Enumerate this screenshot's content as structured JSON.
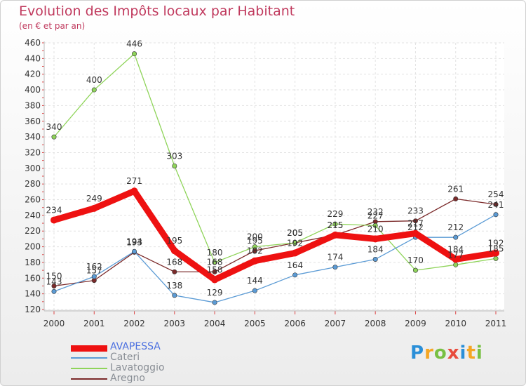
{
  "chart_data": {
    "type": "line",
    "title": "Evolution des Impôts locaux par Habitant",
    "subtitle": "(en € et par an)",
    "xlabel": "",
    "ylabel": "",
    "categories": [
      "2000",
      "2001",
      "2002",
      "2003",
      "2004",
      "2005",
      "2006",
      "2007",
      "2008",
      "2009",
      "2010",
      "2011"
    ],
    "ylim": [
      120,
      460
    ],
    "yticks": [
      120,
      140,
      160,
      180,
      200,
      220,
      240,
      260,
      280,
      300,
      320,
      340,
      360,
      380,
      400,
      420,
      440,
      460
    ],
    "grid": true,
    "legend_position": "bottom-left",
    "series": [
      {
        "name": "AVAPESSA",
        "color": "#ee1111",
        "values": [
          234,
          249,
          271,
          195,
          158,
          182,
          192,
          215,
          210,
          217,
          184,
          192
        ]
      },
      {
        "name": "Cateri",
        "color": "#5b9bd5",
        "values": [
          143,
          162,
          194,
          138,
          129,
          144,
          164,
          174,
          184,
          212,
          212,
          241
        ]
      },
      {
        "name": "Lavatoggio",
        "color": "#8fd45a",
        "values": [
          340,
          400,
          446,
          303,
          180,
          200,
          205,
          229,
          227,
          170,
          177,
          185
        ]
      },
      {
        "name": "Aregno",
        "color": "#7b2a2a",
        "values": [
          150,
          157,
          193,
          168,
          168,
          195,
          205,
          215,
          232,
          233,
          261,
          254
        ]
      }
    ]
  },
  "legend": {
    "items": [
      {
        "label": "AVAPESSA",
        "color": "#ee1111",
        "text_color": "#4a6fe0"
      },
      {
        "label": "Cateri",
        "color": "#5b9bd5",
        "text_color": "#8a8f96"
      },
      {
        "label": "Lavatoggio",
        "color": "#8fd45a",
        "text_color": "#8a8f96"
      },
      {
        "label": "Aregno",
        "color": "#7b2a2a",
        "text_color": "#8a8f96"
      }
    ]
  },
  "logo": {
    "letters": [
      "P",
      "r",
      "o",
      "x",
      "i",
      "t",
      "i"
    ],
    "colors": [
      "#2a8fd8",
      "#f5a623",
      "#78c043",
      "#e84c3d",
      "#2a8fd8",
      "#f5a623",
      "#78c043"
    ]
  }
}
